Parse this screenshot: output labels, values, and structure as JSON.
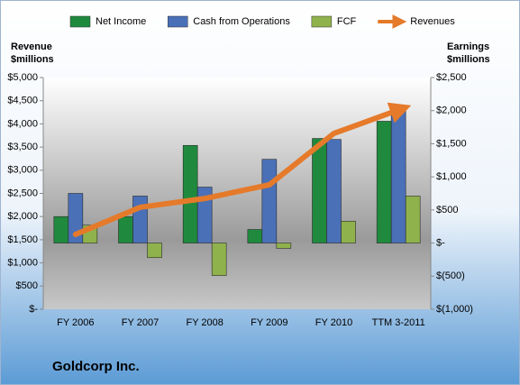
{
  "chart_data": {
    "type": "bar",
    "title": "Goldcorp Inc.",
    "ylabel": [
      "Revenue",
      "$millions"
    ],
    "y2label": [
      "Earnings",
      "$millions"
    ],
    "categories": [
      "FY 2006",
      "FY 2007",
      "FY 2008",
      "FY 2009",
      "FY 2010",
      "TTM 3-2011"
    ],
    "series": [
      {
        "name": "Net Income",
        "color": "#1f8a3e",
        "axis": "y2",
        "values": [
          400,
          400,
          1475,
          205,
          1580,
          1840
        ]
      },
      {
        "name": "Cash from Operations",
        "color": "#4a70b8",
        "axis": "y2",
        "values": [
          750,
          710,
          845,
          1265,
          1565,
          2015
        ]
      },
      {
        "name": "FCF",
        "color": "#8fb24c",
        "axis": "y2",
        "values": [
          270,
          -220,
          -490,
          -80,
          330,
          710
        ]
      },
      {
        "name": "Revenues",
        "color": "#e57a2a",
        "type": "line",
        "values": [
          1615,
          2200,
          2390,
          2685,
          3795,
          4300
        ]
      }
    ],
    "ylim": [
      0,
      5000
    ],
    "yticks": [
      {
        "value": 0,
        "label": "$-"
      },
      {
        "value": 500,
        "label": "$500"
      },
      {
        "value": 1000,
        "label": "$1,000"
      },
      {
        "value": 1500,
        "label": "$1,500"
      },
      {
        "value": 2000,
        "label": "$2,000"
      },
      {
        "value": 2500,
        "label": "$2,500"
      },
      {
        "value": 3000,
        "label": "$3,000"
      },
      {
        "value": 3500,
        "label": "$3,500"
      },
      {
        "value": 4000,
        "label": "$4,000"
      },
      {
        "value": 4500,
        "label": "$4,500"
      },
      {
        "value": 5000,
        "label": "$5,000"
      }
    ],
    "y2lim": [
      -1000,
      2500
    ],
    "y2ticks": [
      {
        "value": -1000,
        "label": "$(1,000)"
      },
      {
        "value": -500,
        "label": "$(500)"
      },
      {
        "value": 0,
        "label": "$-"
      },
      {
        "value": 500,
        "label": "$500"
      },
      {
        "value": 1000,
        "label": "$1,000"
      },
      {
        "value": 1500,
        "label": "$1,500"
      },
      {
        "value": 2000,
        "label": "$2,000"
      },
      {
        "value": 2500,
        "label": "$2,500"
      }
    ]
  }
}
